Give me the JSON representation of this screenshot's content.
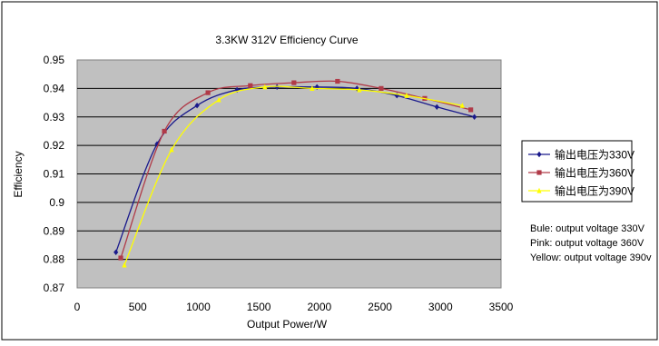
{
  "chart_data": {
    "type": "line",
    "title": "3.3KW 312V Efficiency Curve",
    "xlabel": "Output Power/W",
    "ylabel": "Efficiency",
    "xlim": [
      0,
      3500
    ],
    "ylim": [
      0.87,
      0.95
    ],
    "x_ticks": [
      "0",
      "500",
      "1000",
      "1500",
      "2000",
      "2500",
      "3000",
      "3500"
    ],
    "y_ticks": [
      "0.87",
      "0.88",
      "0.89",
      "0.9",
      "0.91",
      "0.92",
      "0.93",
      "0.94",
      "0.95"
    ],
    "grid": "horizontal",
    "legend_position": "right",
    "plot_background": "#c0c0c0",
    "series": [
      {
        "name": "输出电压为330V",
        "color": "#1a1a8c",
        "marker": "diamond",
        "x": [
          320,
          660,
          990,
          1320,
          1650,
          1980,
          2310,
          2640,
          2970,
          3280
        ],
        "y": [
          0.8825,
          0.9205,
          0.934,
          0.9395,
          0.9405,
          0.9405,
          0.94,
          0.9375,
          0.9335,
          0.93
        ]
      },
      {
        "name": "输出电压为360V",
        "color": "#b03a48",
        "marker": "square",
        "x": [
          360,
          720,
          1080,
          1430,
          1790,
          2150,
          2510,
          2870,
          3250
        ],
        "y": [
          0.8805,
          0.925,
          0.9385,
          0.941,
          0.942,
          0.9425,
          0.94,
          0.9365,
          0.9325
        ]
      },
      {
        "name": "输出电压为390V",
        "color": "#ffff00",
        "marker": "triangle",
        "x": [
          390,
          780,
          1170,
          1550,
          1940,
          2330,
          2720,
          3180
        ],
        "y": [
          0.878,
          0.9185,
          0.936,
          0.9405,
          0.94,
          0.9395,
          0.9375,
          0.934
        ]
      }
    ],
    "notes": [
      "Bule: output voltage  330V",
      "Pink: output voltage 360V",
      "Yellow: output voltage 390v"
    ]
  }
}
